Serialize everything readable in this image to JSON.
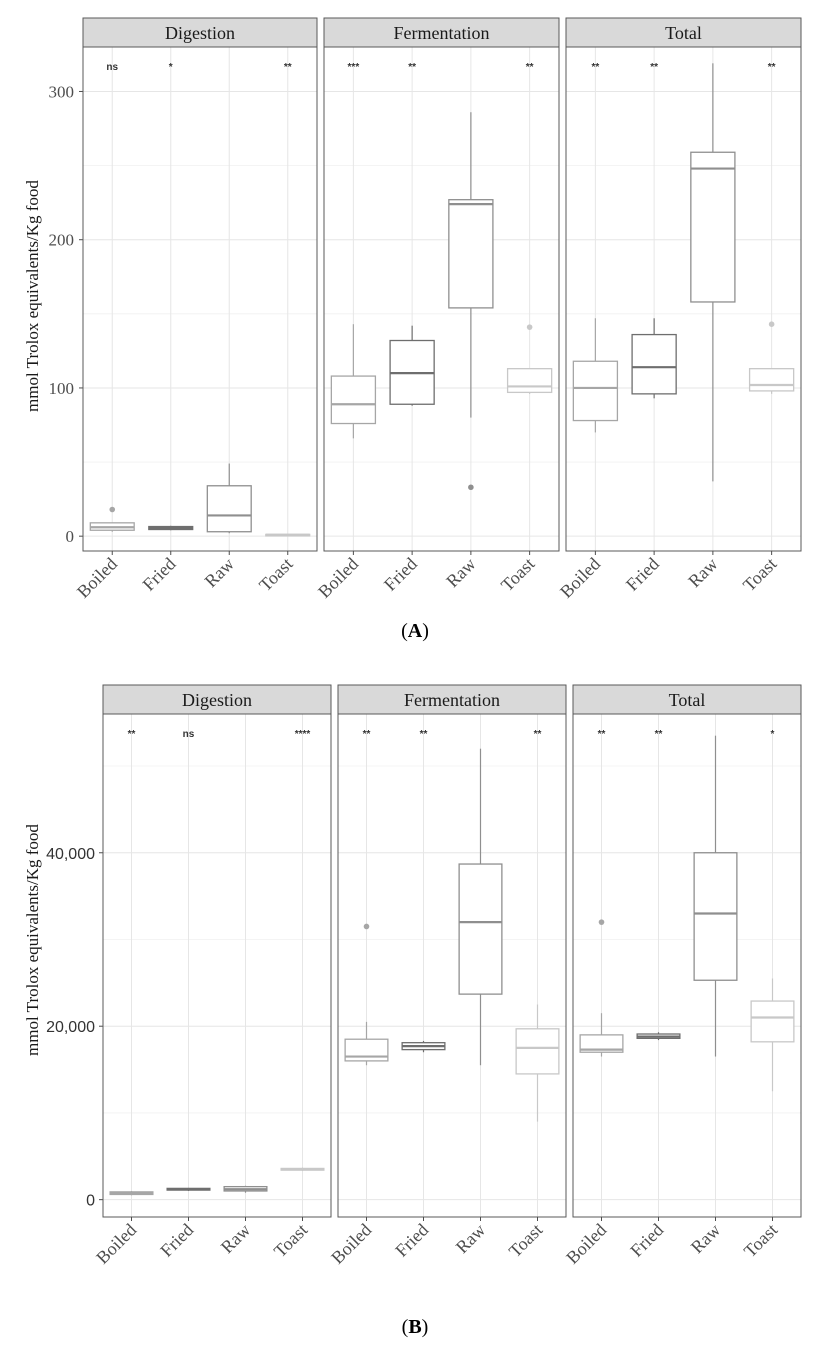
{
  "chart_data": [
    {
      "type": "boxplot",
      "caption": "A",
      "ylabel": "mmol Trolox equivalents/Kg food",
      "ylim": [
        -10,
        330
      ],
      "yticks": [
        0,
        100,
        200,
        300
      ],
      "ytick_labels": [
        "0",
        "100",
        "200",
        "300"
      ],
      "categories": [
        "Boiled",
        "Fried",
        "Raw",
        "Toast"
      ],
      "box_colors": {
        "Boiled": "#a6a6a6",
        "Fried": "#6e6e6e",
        "Raw": "#8f8f8f",
        "Toast": "#c8c8c8"
      },
      "panels": [
        {
          "title": "Digestion",
          "significance": [
            "ns",
            "*",
            "",
            "**"
          ],
          "boxes": [
            {
              "category": "Boiled",
              "lower_whisker": 3,
              "q1": 4,
              "median": 6,
              "q3": 9,
              "upper_whisker": 9,
              "outliers": [
                18
              ]
            },
            {
              "category": "Fried",
              "lower_whisker": 4,
              "q1": 4.5,
              "median": 5.5,
              "q3": 6.5,
              "upper_whisker": 7,
              "outliers": []
            },
            {
              "category": "Raw",
              "lower_whisker": 2,
              "q1": 3,
              "median": 14,
              "q3": 34,
              "upper_whisker": 49,
              "outliers": []
            },
            {
              "category": "Toast",
              "lower_whisker": 0.5,
              "q1": 0.8,
              "median": 1,
              "q3": 1.2,
              "upper_whisker": 1.5,
              "outliers": []
            }
          ]
        },
        {
          "title": "Fermentation",
          "significance": [
            "***",
            "**",
            "",
            "**"
          ],
          "boxes": [
            {
              "category": "Boiled",
              "lower_whisker": 66,
              "q1": 76,
              "median": 89,
              "q3": 108,
              "upper_whisker": 143,
              "outliers": []
            },
            {
              "category": "Fried",
              "lower_whisker": 88,
              "q1": 89,
              "median": 110,
              "q3": 132,
              "upper_whisker": 142,
              "outliers": []
            },
            {
              "category": "Raw",
              "lower_whisker": 80,
              "q1": 154,
              "median": 224,
              "q3": 227,
              "upper_whisker": 286,
              "outliers": [
                33
              ]
            },
            {
              "category": "Toast",
              "lower_whisker": 96,
              "q1": 97,
              "median": 101,
              "q3": 113,
              "upper_whisker": 113,
              "outliers": [
                141
              ]
            }
          ]
        },
        {
          "title": "Total",
          "significance": [
            "**",
            "**",
            "",
            "**"
          ],
          "boxes": [
            {
              "category": "Boiled",
              "lower_whisker": 70,
              "q1": 78,
              "median": 100,
              "q3": 118,
              "upper_whisker": 147,
              "outliers": []
            },
            {
              "category": "Fried",
              "lower_whisker": 93,
              "q1": 96,
              "median": 114,
              "q3": 136,
              "upper_whisker": 147,
              "outliers": []
            },
            {
              "category": "Raw",
              "lower_whisker": 37,
              "q1": 158,
              "median": 248,
              "q3": 259,
              "upper_whisker": 319,
              "outliers": []
            },
            {
              "category": "Toast",
              "lower_whisker": 96,
              "q1": 98,
              "median": 102,
              "q3": 113,
              "upper_whisker": 113,
              "outliers": [
                143
              ]
            }
          ]
        }
      ]
    },
    {
      "type": "boxplot",
      "caption": "B",
      "ylabel": "mmol Trolox equivalents/Kg food",
      "ylim": [
        -2000,
        56000
      ],
      "yticks": [
        0,
        20000,
        40000
      ],
      "ytick_labels": [
        "0",
        "20,000",
        "40,000"
      ],
      "categories": [
        "Boiled",
        "Fried",
        "Raw",
        "Toast"
      ],
      "box_colors": {
        "Boiled": "#a6a6a6",
        "Fried": "#6e6e6e",
        "Raw": "#8f8f8f",
        "Toast": "#c8c8c8"
      },
      "panels": [
        {
          "title": "Digestion",
          "significance": [
            "**",
            "ns",
            "",
            "****"
          ],
          "boxes": [
            {
              "category": "Boiled",
              "lower_whisker": 500,
              "q1": 600,
              "median": 750,
              "q3": 900,
              "upper_whisker": 1000,
              "outliers": []
            },
            {
              "category": "Fried",
              "lower_whisker": 1000,
              "q1": 1100,
              "median": 1200,
              "q3": 1300,
              "upper_whisker": 1350,
              "outliers": []
            },
            {
              "category": "Raw",
              "lower_whisker": 800,
              "q1": 1000,
              "median": 1200,
              "q3": 1500,
              "upper_whisker": 1600,
              "outliers": []
            },
            {
              "category": "Toast",
              "lower_whisker": 3300,
              "q1": 3400,
              "median": 3500,
              "q3": 3600,
              "upper_whisker": 3700,
              "outliers": []
            }
          ]
        },
        {
          "title": "Fermentation",
          "significance": [
            "**",
            "**",
            "",
            "**"
          ],
          "boxes": [
            {
              "category": "Boiled",
              "lower_whisker": 15500,
              "q1": 16000,
              "median": 16500,
              "q3": 18500,
              "upper_whisker": 20500,
              "outliers": [
                31500
              ]
            },
            {
              "category": "Fried",
              "lower_whisker": 17000,
              "q1": 17300,
              "median": 17700,
              "q3": 18100,
              "upper_whisker": 18300,
              "outliers": []
            },
            {
              "category": "Raw",
              "lower_whisker": 15500,
              "q1": 23700,
              "median": 32000,
              "q3": 38700,
              "upper_whisker": 52000,
              "outliers": []
            },
            {
              "category": "Toast",
              "lower_whisker": 9000,
              "q1": 14500,
              "median": 17500,
              "q3": 19700,
              "upper_whisker": 22500,
              "outliers": []
            }
          ]
        },
        {
          "title": "Total",
          "significance": [
            "**",
            "**",
            "",
            "*"
          ],
          "boxes": [
            {
              "category": "Boiled",
              "lower_whisker": 16500,
              "q1": 17000,
              "median": 17300,
              "q3": 19000,
              "upper_whisker": 21500,
              "outliers": [
                32000
              ]
            },
            {
              "category": "Fried",
              "lower_whisker": 18400,
              "q1": 18600,
              "median": 18800,
              "q3": 19100,
              "upper_whisker": 19300,
              "outliers": []
            },
            {
              "category": "Raw",
              "lower_whisker": 16500,
              "q1": 25300,
              "median": 33000,
              "q3": 40000,
              "upper_whisker": 53500,
              "outliers": []
            },
            {
              "category": "Toast",
              "lower_whisker": 12500,
              "q1": 18200,
              "median": 21000,
              "q3": 22900,
              "upper_whisker": 25500,
              "outliers": []
            }
          ]
        }
      ]
    }
  ]
}
